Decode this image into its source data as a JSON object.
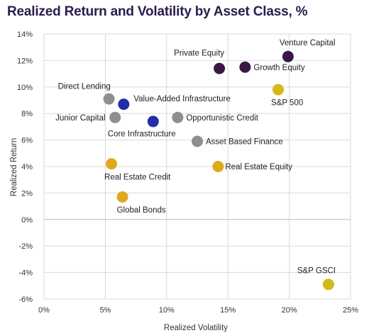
{
  "chart_data": {
    "type": "scatter",
    "title": "Realized Return and Volatility by Asset Class, %",
    "xlabel": "Realized Volatility",
    "ylabel": "Realized Return",
    "xlim": [
      0,
      25
    ],
    "ylim": [
      -6,
      14
    ],
    "x_ticks": [
      0,
      5,
      10,
      15,
      20,
      25
    ],
    "x_tick_labels": [
      "0%",
      "5%",
      "10%",
      "15%",
      "20%",
      "25%"
    ],
    "y_ticks": [
      14,
      12,
      10,
      8,
      6,
      4,
      2,
      0,
      -2,
      -4,
      -6
    ],
    "y_tick_labels": [
      "14%",
      "12%",
      "10%",
      "8%",
      "6%",
      "4%",
      "2%",
      "0%",
      "-2%",
      "-4%",
      "-6%"
    ],
    "grid": "major lines on both axes",
    "legend": "none",
    "colors": {
      "purple": "#3a1745",
      "blue": "#1f2fa8",
      "gray": "#8c8f94",
      "gold": "#e0a81c",
      "olive": "#d3b919"
    },
    "points": [
      {
        "label": "Venture Capital",
        "x": 19.9,
        "y": 12.3,
        "color": "purple"
      },
      {
        "label": "Private Equity",
        "x": 14.3,
        "y": 11.4,
        "color": "purple"
      },
      {
        "label": "Growth Equity",
        "x": 16.4,
        "y": 11.5,
        "color": "purple"
      },
      {
        "label": "S&P 500",
        "x": 19.1,
        "y": 9.8,
        "color": "olive"
      },
      {
        "label": "Direct Lending",
        "x": 5.3,
        "y": 9.1,
        "color": "gray"
      },
      {
        "label": "Value-Added Infrastructure",
        "x": 6.5,
        "y": 8.7,
        "color": "blue"
      },
      {
        "label": "Junior Capital",
        "x": 5.8,
        "y": 7.7,
        "color": "gray"
      },
      {
        "label": "Core Infrastructure",
        "x": 8.9,
        "y": 7.4,
        "color": "blue"
      },
      {
        "label": "Opportunistic Credit",
        "x": 10.9,
        "y": 7.7,
        "color": "gray"
      },
      {
        "label": "Asset Based Finance",
        "x": 12.5,
        "y": 5.9,
        "color": "gray"
      },
      {
        "label": "Real Estate Credit",
        "x": 5.5,
        "y": 4.2,
        "color": "gold"
      },
      {
        "label": "Real Estate Equity",
        "x": 14.2,
        "y": 4.0,
        "color": "gold"
      },
      {
        "label": "Global Bonds",
        "x": 6.4,
        "y": 1.7,
        "color": "gold"
      },
      {
        "label": "S&P GSCI",
        "x": 23.2,
        "y": -4.9,
        "color": "olive"
      }
    ]
  }
}
